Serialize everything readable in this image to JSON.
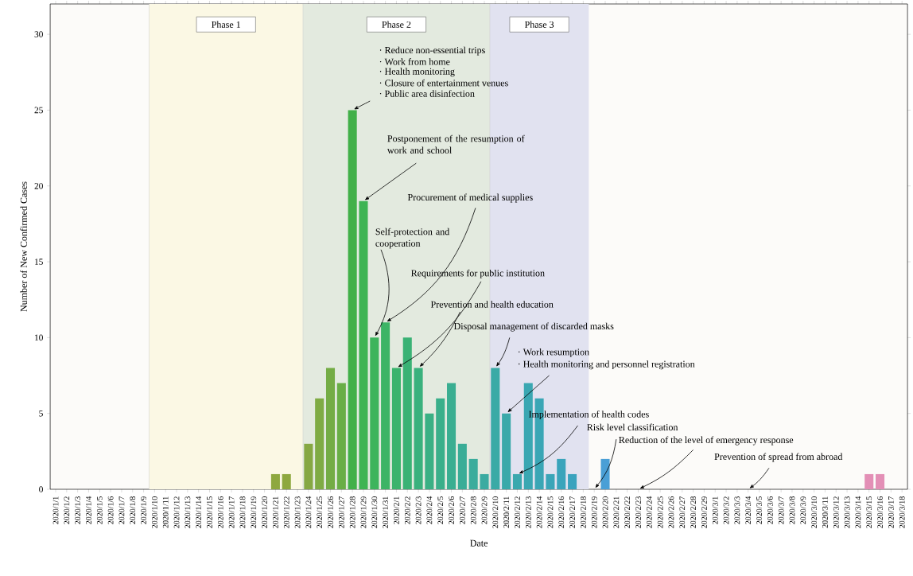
{
  "chart_data": {
    "type": "bar",
    "xlabel": "Date",
    "ylabel": "Number of New Confirmed Cases",
    "categories": [
      "2020/1/1",
      "2020/1/2",
      "2020/1/3",
      "2020/1/4",
      "2020/1/5",
      "2020/1/6",
      "2020/1/7",
      "2020/1/8",
      "2020/1/9",
      "2020/1/10",
      "2020/1/11",
      "2020/1/12",
      "2020/1/13",
      "2020/1/14",
      "2020/1/15",
      "2020/1/16",
      "2020/1/17",
      "2020/1/18",
      "2020/1/19",
      "2020/1/20",
      "2020/1/21",
      "2020/1/22",
      "2020/1/23",
      "2020/1/24",
      "2020/1/25",
      "2020/1/26",
      "2020/1/27",
      "2020/1/28",
      "2020/1/29",
      "2020/1/30",
      "2020/1/31",
      "2020/2/1",
      "2020/2/2",
      "2020/2/3",
      "2020/2/4",
      "2020/2/5",
      "2020/2/6",
      "2020/2/7",
      "2020/2/8",
      "2020/2/9",
      "2020/2/10",
      "2020/2/11",
      "2020/2/12",
      "2020/2/13",
      "2020/2/14",
      "2020/2/15",
      "2020/2/16",
      "2020/2/17",
      "2020/2/18",
      "2020/2/19",
      "2020/2/20",
      "2020/2/21",
      "2020/2/22",
      "2020/2/23",
      "2020/2/24",
      "2020/2/25",
      "2020/2/26",
      "2020/2/27",
      "2020/2/28",
      "2020/2/29",
      "2020/3/1",
      "2020/3/2",
      "2020/3/3",
      "2020/3/4",
      "2020/3/5",
      "2020/3/6",
      "2020/3/7",
      "2020/3/8",
      "2020/3/9",
      "2020/3/10",
      "2020/3/11",
      "2020/3/12",
      "2020/3/13",
      "2020/3/14",
      "2020/3/15",
      "2020/3/16",
      "2020/3/17",
      "2020/3/18"
    ],
    "values": [
      0,
      0,
      0,
      0,
      0,
      0,
      0,
      0,
      0,
      0,
      0,
      0,
      0,
      0,
      0,
      0,
      0,
      0,
      0,
      0,
      1,
      1,
      0,
      3,
      6,
      8,
      7,
      25,
      19,
      10,
      11,
      8,
      10,
      8,
      5,
      6,
      7,
      3,
      2,
      1,
      8,
      5,
      1,
      7,
      6,
      1,
      2,
      1,
      0,
      0,
      2,
      0,
      0,
      0,
      0,
      0,
      0,
      0,
      0,
      0,
      0,
      0,
      0,
      0,
      0,
      0,
      0,
      0,
      0,
      0,
      0,
      0,
      0,
      0,
      1,
      1,
      0,
      0
    ],
    "colors": [
      "#8ea83f",
      "#8ea83f",
      "#8ea83f",
      "#8ea83f",
      "#8ea83f",
      "#8ea83f",
      "#8ea83f",
      "#8ea83f",
      "#8ea83f",
      "#8ea83f",
      "#8ea83f",
      "#8ea83f",
      "#8ea83f",
      "#8ea83f",
      "#8ea83f",
      "#8ea83f",
      "#8ea83f",
      "#8ea83f",
      "#8ea83f",
      "#8ea83f",
      "#8ea83f",
      "#8ea83f",
      "#8ea83f",
      "#86a843",
      "#7fab44",
      "#74ac45",
      "#69ae46",
      "#42b049",
      "#3eb453",
      "#3db45c",
      "#3cb465",
      "#3bb36d",
      "#3ab275",
      "#3ab17d",
      "#3ab084",
      "#3aaf8a",
      "#3aae91",
      "#3aad97",
      "#3aac9c",
      "#3aaba1",
      "#3aaaa6",
      "#3aa9aa",
      "#3aa8ae",
      "#3aa7b2",
      "#3aa6b5",
      "#3aa5b8",
      "#3aa4bb",
      "#3aa3be",
      "#3ba2c2",
      "#4a9fd6",
      "#4a9fd6",
      "#4a9fd6",
      "#4a9fd6",
      "#4a9fd6",
      "#4a9fd6",
      "#4a9fd6",
      "#4a9fd6",
      "#4a9fd6",
      "#4a9fd6",
      "#4a9fd6",
      "#4a9fd6",
      "#4a9fd6",
      "#4a9fd6",
      "#4a9fd6",
      "#4a9fd6",
      "#4a9fd6",
      "#4a9fd6",
      "#4a9fd6",
      "#4a9fd6",
      "#4a9fd6",
      "#4a9fd6",
      "#4a9fd6",
      "#4a9fd6",
      "#e38fb6",
      "#e38fb6",
      "#e38fb6",
      "#e38fb6",
      "#e38fb6"
    ],
    "ylim": [
      0,
      32
    ],
    "yticks": [
      0,
      5,
      10,
      15,
      20,
      25,
      30
    ],
    "bands": [
      {
        "axis": "x",
        "from": "2020/1/10",
        "to": "2020/1/23",
        "label": "Phase 1",
        "color": "#fbf8e4"
      },
      {
        "axis": "x",
        "from": "2020/1/24",
        "to": "2020/2/9",
        "label": "Phase 2",
        "color": "#e3eadf"
      },
      {
        "axis": "x",
        "from": "2020/2/10",
        "to": "2020/2/18",
        "label": "Phase 3",
        "color": "#e1e2f0"
      }
    ],
    "annotations": [
      "· Reduce non-essential trips",
      "· Work from home",
      "· Health monitoring",
      "· Closure of entertainment venues",
      {
        "text": "· Public area disinfection",
        "x": "2020/1/28",
        "y": 25
      },
      {
        "text": "Postponement of the resumption of work and school",
        "x": "2020/1/29",
        "y": 19
      },
      {
        "text": "Procurement of medical supplies",
        "x": "2020/1/31",
        "y": 11
      },
      {
        "text": "Self-protection and cooperation",
        "x": "2020/1/30",
        "y": 10
      },
      {
        "text": "Requirements for public institution",
        "x": "2020/2/1",
        "y": 8
      },
      {
        "text": "Prevention and health education",
        "x": "2020/2/3",
        "y": 8
      },
      {
        "text": "Disposal management of discarded masks",
        "x": "2020/2/10",
        "y": 8
      },
      "· Work resumption",
      {
        "text": "· Health monitoring and personnel registration",
        "x": "2020/2/11",
        "y": 5
      },
      {
        "text": "Implementation of health codes",
        "x": "2020/2/12",
        "y": 1
      },
      {
        "text": "Risk level classification",
        "x": "2020/2/19",
        "y": 0
      },
      {
        "text": "Reduction of the level of emergency response",
        "x": "2020/2/23",
        "y": 0
      },
      {
        "text": "Prevention of spread from abroad",
        "x": "2020/3/4",
        "y": 0
      }
    ]
  }
}
